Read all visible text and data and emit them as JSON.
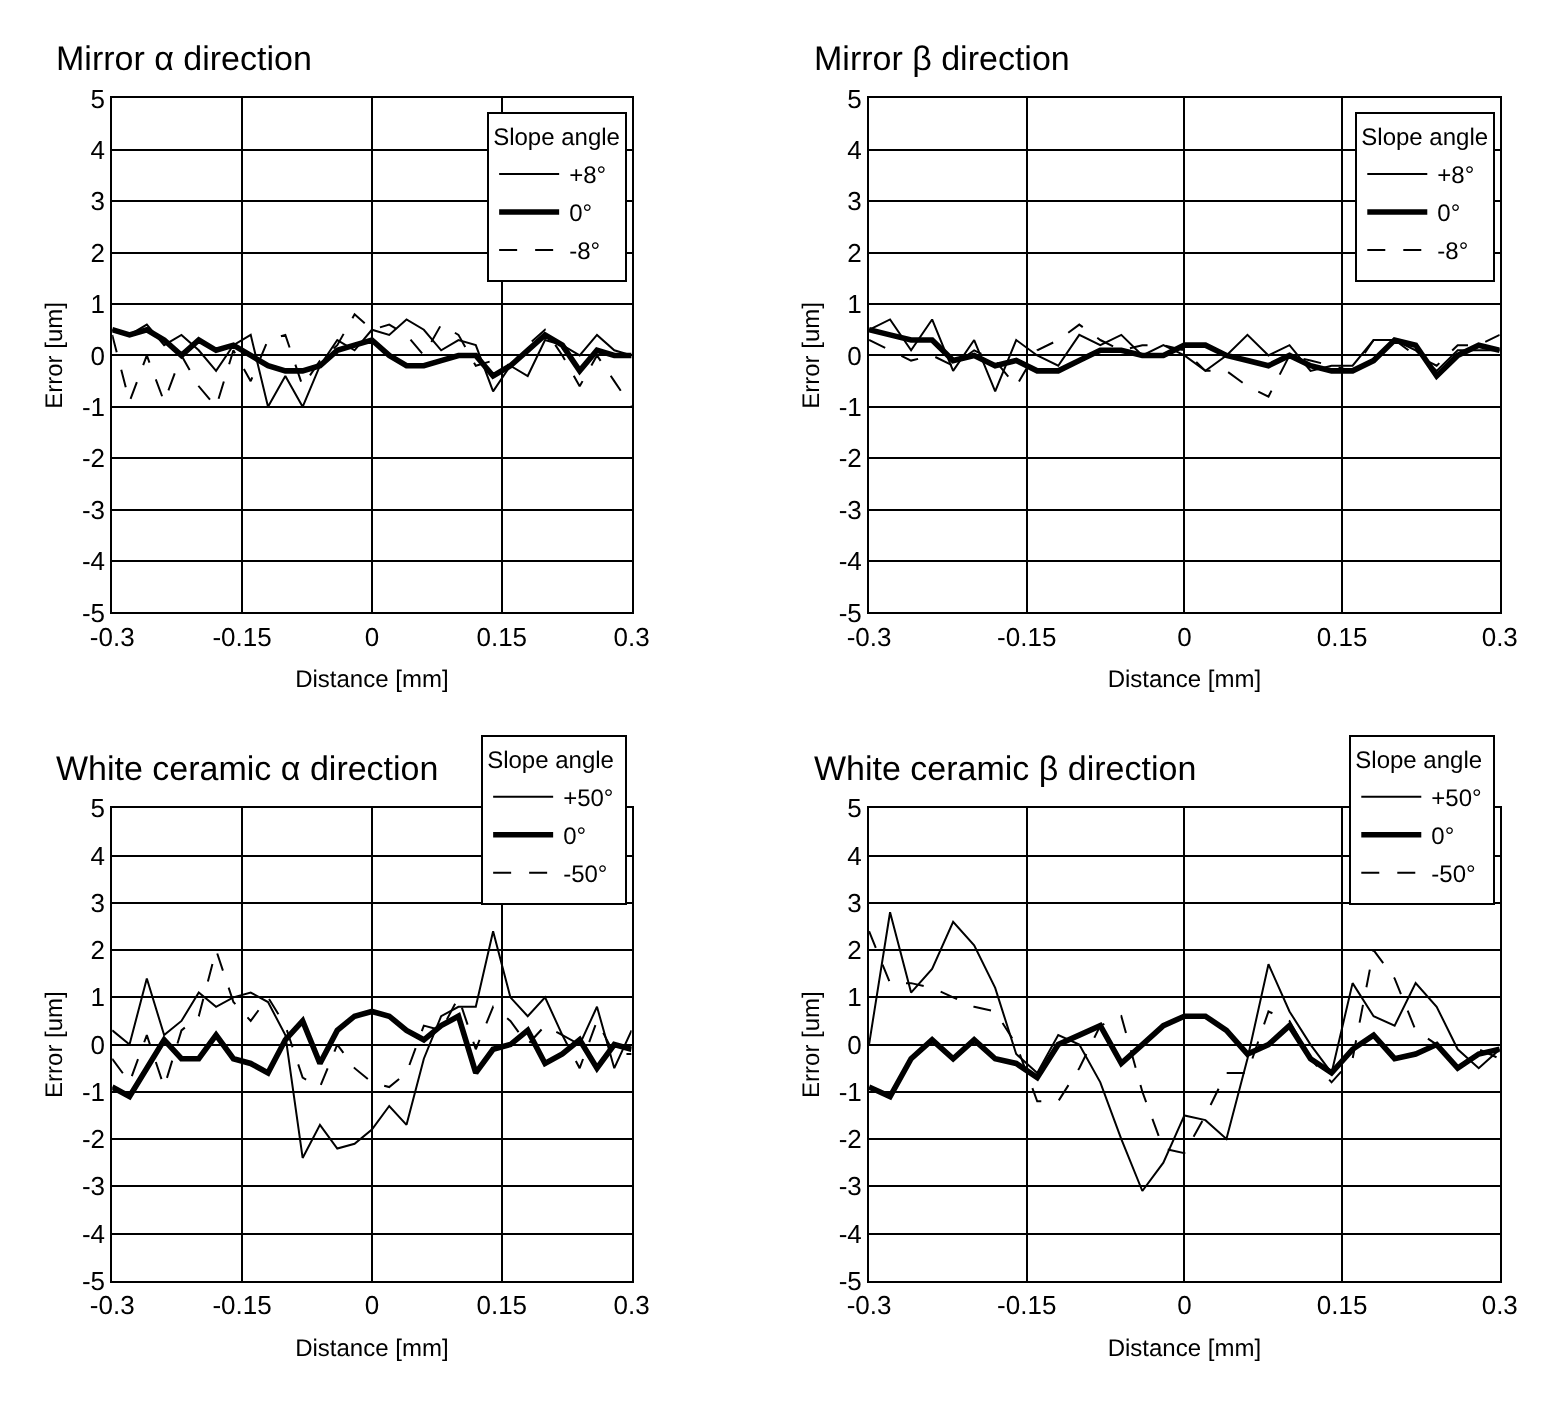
{
  "chart_data": [
    {
      "type": "line",
      "title": "Mirror α direction",
      "xlabel": "Distance [mm]",
      "ylabel": "Error [um]",
      "legend_title": "Slope angle",
      "legend": "top right",
      "grid": true,
      "marker": "none",
      "xlim": [
        -0.3,
        0.3
      ],
      "xticks": [
        -0.3,
        -0.15,
        0,
        0.15,
        0.3
      ],
      "ylim": [
        -5,
        5
      ],
      "yticks": [
        -5,
        -4,
        -3,
        -2,
        -1,
        0,
        1,
        2,
        3,
        4,
        5
      ],
      "x": [
        -0.3,
        -0.28,
        -0.26,
        -0.24,
        -0.22,
        -0.2,
        -0.18,
        -0.16,
        -0.14,
        -0.12,
        -0.1,
        -0.08,
        -0.06,
        -0.04,
        -0.02,
        0,
        0.02,
        0.04,
        0.06,
        0.08,
        0.1,
        0.12,
        0.14,
        0.16,
        0.18,
        0.2,
        0.22,
        0.24,
        0.26,
        0.28,
        0.3
      ],
      "series": [
        {
          "name": "+8°",
          "color": "#000000",
          "line_style": "solid",
          "values": [
            0.5,
            0.4,
            0.6,
            0.2,
            0.4,
            0.1,
            -0.3,
            0.2,
            0.4,
            -1.0,
            -0.4,
            -1.0,
            -0.2,
            0.3,
            0.1,
            0.5,
            0.4,
            0.7,
            0.5,
            0.1,
            0.3,
            0.2,
            -0.7,
            -0.2,
            -0.4,
            0.3,
            0.2,
            0.0,
            0.4,
            0.1,
            0.0
          ]
        },
        {
          "name": "0°",
          "color": "#000000",
          "line_style": "solid",
          "values": [
            0.5,
            0.4,
            0.5,
            0.3,
            0.0,
            0.3,
            0.1,
            0.2,
            0.0,
            -0.2,
            -0.3,
            -0.3,
            -0.2,
            0.1,
            0.2,
            0.3,
            0.0,
            -0.2,
            -0.2,
            -0.1,
            0.0,
            0.0,
            -0.4,
            -0.2,
            0.1,
            0.4,
            0.2,
            -0.3,
            0.1,
            0.0,
            0.0
          ]
        },
        {
          "name": "-8°",
          "color": "#000000",
          "line_style": "dashed",
          "values": [
            0.4,
            -0.9,
            0.0,
            -0.9,
            0.0,
            -0.6,
            -1.0,
            0.1,
            -0.5,
            0.3,
            0.4,
            -0.6,
            -0.1,
            0.2,
            0.8,
            0.5,
            0.6,
            0.4,
            0.0,
            0.6,
            0.4,
            -0.2,
            -0.1,
            -0.2,
            0.2,
            0.5,
            0.0,
            -0.6,
            0.0,
            -0.5,
            -1.0
          ]
        }
      ]
    },
    {
      "type": "line",
      "title": "Mirror β direction",
      "xlabel": "Distance [mm]",
      "ylabel": "Error [um]",
      "legend_title": "Slope angle",
      "legend": "top right",
      "grid": true,
      "marker": "none",
      "xlim": [
        -0.3,
        0.3
      ],
      "xticks": [
        -0.3,
        -0.15,
        0,
        0.15,
        0.3
      ],
      "ylim": [
        -5,
        5
      ],
      "yticks": [
        -5,
        -4,
        -3,
        -2,
        -1,
        0,
        1,
        2,
        3,
        4,
        5
      ],
      "x": [
        -0.3,
        -0.28,
        -0.26,
        -0.24,
        -0.22,
        -0.2,
        -0.18,
        -0.16,
        -0.14,
        -0.12,
        -0.1,
        -0.08,
        -0.06,
        -0.04,
        -0.02,
        0,
        0.02,
        0.04,
        0.06,
        0.08,
        0.1,
        0.12,
        0.14,
        0.16,
        0.18,
        0.2,
        0.22,
        0.24,
        0.26,
        0.28,
        0.3
      ],
      "series": [
        {
          "name": "+8°",
          "color": "#000000",
          "line_style": "solid",
          "values": [
            0.5,
            0.7,
            0.1,
            0.7,
            -0.3,
            0.3,
            -0.7,
            0.3,
            0.0,
            -0.2,
            0.4,
            0.2,
            0.4,
            0.0,
            0.2,
            0.0,
            -0.3,
            0.0,
            0.4,
            0.0,
            0.2,
            -0.3,
            -0.2,
            -0.2,
            0.3,
            0.3,
            0.1,
            -0.3,
            0.1,
            0.1,
            0.1
          ]
        },
        {
          "name": "0°",
          "color": "#000000",
          "line_style": "solid",
          "values": [
            0.5,
            0.4,
            0.3,
            0.3,
            -0.1,
            0.0,
            -0.2,
            -0.1,
            -0.3,
            -0.3,
            -0.1,
            0.1,
            0.1,
            0.0,
            0.0,
            0.2,
            0.2,
            0.0,
            -0.1,
            -0.2,
            0.0,
            -0.2,
            -0.3,
            -0.3,
            -0.1,
            0.3,
            0.2,
            -0.4,
            0.0,
            0.2,
            0.1
          ]
        },
        {
          "name": "-8°",
          "color": "#000000",
          "line_style": "dashed",
          "values": [
            0.3,
            0.1,
            -0.1,
            0.0,
            -0.2,
            0.1,
            -0.1,
            -0.6,
            0.1,
            0.3,
            0.6,
            0.3,
            0.1,
            0.2,
            0.2,
            0.1,
            -0.3,
            -0.3,
            -0.6,
            -0.8,
            0.0,
            -0.1,
            -0.2,
            -0.3,
            0.3,
            0.3,
            0.0,
            -0.2,
            0.2,
            0.2,
            0.4
          ]
        }
      ]
    },
    {
      "type": "line",
      "title": "White ceramic α direction",
      "xlabel": "Distance [mm]",
      "ylabel": "Error [um]",
      "legend_title": "Slope angle",
      "legend": "top right",
      "grid": true,
      "marker": "none",
      "xlim": [
        -0.3,
        0.3
      ],
      "xticks": [
        -0.3,
        -0.15,
        0,
        0.15,
        0.3
      ],
      "ylim": [
        -5,
        5
      ],
      "yticks": [
        -5,
        -4,
        -3,
        -2,
        -1,
        0,
        1,
        2,
        3,
        4,
        5
      ],
      "x": [
        -0.3,
        -0.28,
        -0.26,
        -0.24,
        -0.22,
        -0.2,
        -0.18,
        -0.16,
        -0.14,
        -0.12,
        -0.1,
        -0.08,
        -0.06,
        -0.04,
        -0.02,
        0,
        0.02,
        0.04,
        0.06,
        0.08,
        0.1,
        0.12,
        0.14,
        0.16,
        0.18,
        0.2,
        0.22,
        0.24,
        0.26,
        0.28,
        0.3
      ],
      "series": [
        {
          "name": "+50°",
          "color": "#000000",
          "line_style": "solid",
          "values": [
            0.3,
            0.0,
            1.4,
            0.2,
            0.5,
            1.1,
            0.8,
            1.0,
            1.1,
            0.9,
            0.2,
            -2.4,
            -1.7,
            -2.2,
            -2.1,
            -1.8,
            -1.3,
            -1.7,
            -0.3,
            0.6,
            0.8,
            0.8,
            2.4,
            1.0,
            0.6,
            1.0,
            0.2,
            0.0,
            0.8,
            -0.5,
            0.3
          ]
        },
        {
          "name": "0°",
          "color": "#000000",
          "line_style": "solid",
          "values": [
            -0.9,
            -1.1,
            -0.5,
            0.1,
            -0.3,
            -0.3,
            0.2,
            -0.3,
            -0.4,
            -0.6,
            0.1,
            0.5,
            -0.4,
            0.3,
            0.6,
            0.7,
            0.6,
            0.3,
            0.1,
            0.4,
            0.6,
            -0.6,
            -0.1,
            0.0,
            0.3,
            -0.4,
            -0.2,
            0.1,
            -0.5,
            0.0,
            -0.1
          ]
        },
        {
          "name": "-50°",
          "color": "#000000",
          "line_style": "dashed",
          "values": [
            -0.3,
            -0.8,
            0.2,
            -0.9,
            0.3,
            0.6,
            2.0,
            0.9,
            0.5,
            1.0,
            0.4,
            -0.7,
            -0.9,
            0.0,
            -0.5,
            -0.8,
            -0.9,
            -0.6,
            0.4,
            0.3,
            1.0,
            -0.1,
            0.8,
            0.5,
            0.0,
            0.4,
            0.2,
            -0.5,
            0.5,
            -0.2,
            -0.2
          ]
        }
      ]
    },
    {
      "type": "line",
      "title": "White ceramic β direction",
      "xlabel": "Distance [mm]",
      "ylabel": "Error [um]",
      "legend_title": "Slope angle",
      "legend": "top right",
      "grid": true,
      "marker": "none",
      "xlim": [
        -0.3,
        0.3
      ],
      "xticks": [
        -0.3,
        -0.15,
        0,
        0.15,
        0.3
      ],
      "ylim": [
        -5,
        5
      ],
      "yticks": [
        -5,
        -4,
        -3,
        -2,
        -1,
        0,
        1,
        2,
        3,
        4,
        5
      ],
      "x": [
        -0.3,
        -0.28,
        -0.26,
        -0.24,
        -0.22,
        -0.2,
        -0.18,
        -0.16,
        -0.14,
        -0.12,
        -0.1,
        -0.08,
        -0.06,
        -0.04,
        -0.02,
        0,
        0.02,
        0.04,
        0.06,
        0.08,
        0.1,
        0.12,
        0.14,
        0.16,
        0.18,
        0.2,
        0.22,
        0.24,
        0.26,
        0.28,
        0.3
      ],
      "series": [
        {
          "name": "+50°",
          "color": "#000000",
          "line_style": "solid",
          "values": [
            0.0,
            2.8,
            1.1,
            1.6,
            2.6,
            2.1,
            1.2,
            -0.2,
            -0.6,
            0.2,
            0.0,
            -0.8,
            -2.0,
            -3.1,
            -2.5,
            -1.5,
            -1.6,
            -2.0,
            -0.3,
            1.7,
            0.7,
            0.0,
            -0.6,
            1.3,
            0.6,
            0.4,
            1.3,
            0.8,
            -0.1,
            -0.5,
            -0.1
          ]
        },
        {
          "name": "0°",
          "color": "#000000",
          "line_style": "solid",
          "values": [
            -0.9,
            -1.1,
            -0.3,
            0.1,
            -0.3,
            0.1,
            -0.3,
            -0.4,
            -0.7,
            0.0,
            0.2,
            0.4,
            -0.4,
            0.0,
            0.4,
            0.6,
            0.6,
            0.3,
            -0.2,
            0.0,
            0.4,
            -0.3,
            -0.6,
            -0.1,
            0.2,
            -0.3,
            -0.2,
            0.0,
            -0.5,
            -0.2,
            -0.1
          ]
        },
        {
          "name": "-50°",
          "color": "#000000",
          "line_style": "dashed",
          "values": [
            2.4,
            1.3,
            1.3,
            1.2,
            1.0,
            0.8,
            0.7,
            0.0,
            -1.2,
            -1.2,
            -0.5,
            0.4,
            0.6,
            -1.0,
            -2.2,
            -2.3,
            -1.5,
            -0.6,
            -0.6,
            0.7,
            0.5,
            -0.3,
            -0.8,
            -0.3,
            2.0,
            1.4,
            0.3,
            0.0,
            -0.5,
            -0.1,
            -0.3
          ]
        }
      ]
    }
  ]
}
